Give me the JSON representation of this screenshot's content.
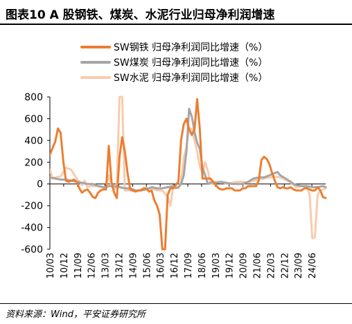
{
  "figure": {
    "title": "图表10   A 股钢铁、煤炭、水泥行业归母净利润增速",
    "source": "资料来源：Wind，平安证券研究所"
  },
  "chart_data": {
    "type": "line",
    "ylim": [
      -600,
      800
    ],
    "yticks": [
      -600,
      -400,
      -200,
      0,
      200,
      400,
      600,
      800
    ],
    "grid": false,
    "legend_position": "top",
    "x_tick_labels": [
      "10/03",
      "10/12",
      "11/09",
      "12/06",
      "13/03",
      "13/12",
      "14/09",
      "15/06",
      "16/03",
      "16/12",
      "17/09",
      "18/06",
      "19/03",
      "19/12",
      "20/09",
      "21/06",
      "22/03",
      "22/12",
      "23/09",
      "24/06"
    ],
    "highlight_band": {
      "from": "16/03",
      "to": "17/12",
      "color": "#fce4d6"
    },
    "series": [
      {
        "name": "SW钢铁 归母净利润同比增速（%）",
        "color": "#ed7d31",
        "stroke_width": 3,
        "values": [
          [
            0,
            270
          ],
          [
            2,
            390
          ],
          [
            3,
            510
          ],
          [
            4,
            470
          ],
          [
            5,
            210
          ],
          [
            6,
            30
          ],
          [
            7,
            20
          ],
          [
            8,
            30
          ],
          [
            9,
            40
          ],
          [
            10,
            20
          ],
          [
            11,
            -40
          ],
          [
            12,
            -80
          ],
          [
            13,
            -60
          ],
          [
            14,
            -50
          ],
          [
            15,
            -80
          ],
          [
            16,
            -120
          ],
          [
            17,
            -130
          ],
          [
            18,
            -80
          ],
          [
            19,
            -60
          ],
          [
            20,
            -50
          ],
          [
            21,
            -50
          ],
          [
            22,
            350
          ],
          [
            23,
            20
          ],
          [
            24,
            -80
          ],
          [
            25,
            -130
          ],
          [
            26,
            250
          ],
          [
            27,
            430
          ],
          [
            28,
            300
          ],
          [
            29,
            100
          ],
          [
            30,
            -50
          ],
          [
            31,
            -60
          ],
          [
            32,
            -70
          ],
          [
            33,
            -60
          ],
          [
            34,
            -60
          ],
          [
            35,
            -40
          ],
          [
            36,
            -40
          ],
          [
            37,
            -70
          ],
          [
            38,
            -60
          ],
          [
            39,
            -150
          ],
          [
            40,
            -200
          ],
          [
            41,
            -280
          ],
          [
            42,
            -600
          ],
          [
            43,
            -600
          ],
          [
            44,
            -100
          ],
          [
            45,
            -40
          ],
          [
            46,
            -40
          ],
          [
            47,
            -10
          ],
          [
            48,
            20
          ],
          [
            49,
            400
          ],
          [
            50,
            550
          ],
          [
            51,
            600
          ],
          [
            52,
            500
          ],
          [
            53,
            450
          ],
          [
            54,
            500
          ],
          [
            55,
            780
          ],
          [
            56,
            500
          ],
          [
            57,
            50
          ],
          [
            58,
            50
          ],
          [
            59,
            50
          ],
          [
            60,
            50
          ],
          [
            61,
            20
          ],
          [
            62,
            -10
          ],
          [
            63,
            -40
          ],
          [
            64,
            -50
          ],
          [
            65,
            -50
          ],
          [
            66,
            -40
          ],
          [
            67,
            -40
          ],
          [
            68,
            -40
          ],
          [
            69,
            -60
          ],
          [
            70,
            -60
          ],
          [
            71,
            -60
          ],
          [
            72,
            -40
          ],
          [
            73,
            -40
          ],
          [
            74,
            -20
          ],
          [
            75,
            -20
          ],
          [
            76,
            -20
          ],
          [
            77,
            -20
          ],
          [
            78,
            30
          ],
          [
            79,
            220
          ],
          [
            80,
            250
          ],
          [
            81,
            230
          ],
          [
            82,
            180
          ],
          [
            83,
            100
          ],
          [
            84,
            30
          ],
          [
            85,
            -30
          ],
          [
            86,
            -40
          ],
          [
            87,
            -30
          ],
          [
            88,
            -40
          ],
          [
            89,
            -40
          ],
          [
            90,
            -30
          ],
          [
            91,
            -50
          ],
          [
            92,
            -60
          ],
          [
            93,
            -60
          ],
          [
            94,
            -60
          ],
          [
            95,
            -40
          ],
          [
            96,
            -40
          ],
          [
            97,
            -50
          ],
          [
            98,
            -60
          ],
          [
            99,
            -60
          ],
          [
            100,
            -30
          ],
          [
            101,
            -60
          ],
          [
            102,
            -120
          ],
          [
            103,
            -130
          ]
        ]
      },
      {
        "name": "SW煤炭 归母净利润同比增速（%）",
        "color": "#a5a5a5",
        "stroke_width": 3,
        "values": [
          [
            0,
            60
          ],
          [
            2,
            50
          ],
          [
            4,
            40
          ],
          [
            6,
            40
          ],
          [
            8,
            30
          ],
          [
            10,
            20
          ],
          [
            12,
            10
          ],
          [
            14,
            0
          ],
          [
            16,
            0
          ],
          [
            18,
            -20
          ],
          [
            20,
            -30
          ],
          [
            22,
            -20
          ],
          [
            24,
            -20
          ],
          [
            26,
            -30
          ],
          [
            28,
            -40
          ],
          [
            30,
            -40
          ],
          [
            32,
            -60
          ],
          [
            34,
            -60
          ],
          [
            36,
            -50
          ],
          [
            38,
            -30
          ],
          [
            40,
            -40
          ],
          [
            42,
            -40
          ],
          [
            44,
            -30
          ],
          [
            46,
            -20
          ],
          [
            47,
            -40
          ],
          [
            48,
            -30
          ],
          [
            49,
            0
          ],
          [
            50,
            80
          ],
          [
            51,
            300
          ],
          [
            52,
            690
          ],
          [
            53,
            620
          ],
          [
            54,
            480
          ],
          [
            55,
            380
          ],
          [
            56,
            320
          ],
          [
            57,
            150
          ],
          [
            58,
            80
          ],
          [
            59,
            0
          ],
          [
            60,
            10
          ],
          [
            61,
            20
          ],
          [
            62,
            10
          ],
          [
            64,
            20
          ],
          [
            66,
            10
          ],
          [
            68,
            0
          ],
          [
            70,
            0
          ],
          [
            72,
            0
          ],
          [
            74,
            20
          ],
          [
            76,
            50
          ],
          [
            78,
            60
          ],
          [
            80,
            60
          ],
          [
            82,
            80
          ],
          [
            84,
            100
          ],
          [
            85,
            110
          ],
          [
            86,
            80
          ],
          [
            88,
            50
          ],
          [
            90,
            20
          ],
          [
            91,
            0
          ],
          [
            92,
            -10
          ],
          [
            94,
            -20
          ],
          [
            96,
            -20
          ],
          [
            98,
            -30
          ],
          [
            100,
            -30
          ],
          [
            102,
            -20
          ],
          [
            103,
            -30
          ]
        ]
      },
      {
        "name": "SW水泥 归母净利润同比增速（%）",
        "color": "#f8cbad",
        "stroke_width": 3,
        "values": [
          [
            0,
            130
          ],
          [
            1,
            50
          ],
          [
            2,
            60
          ],
          [
            4,
            70
          ],
          [
            6,
            150
          ],
          [
            8,
            130
          ],
          [
            10,
            50
          ],
          [
            12,
            -10
          ],
          [
            13,
            30
          ],
          [
            14,
            -30
          ],
          [
            15,
            -20
          ],
          [
            16,
            -20
          ],
          [
            17,
            -20
          ],
          [
            18,
            -20
          ],
          [
            19,
            -20
          ],
          [
            20,
            -40
          ],
          [
            21,
            -30
          ],
          [
            22,
            80
          ],
          [
            23,
            -20
          ],
          [
            24,
            -60
          ],
          [
            25,
            -10
          ],
          [
            26,
            900
          ],
          [
            27,
            900
          ],
          [
            28,
            -60
          ],
          [
            30,
            -60
          ],
          [
            32,
            -70
          ],
          [
            34,
            -50
          ],
          [
            36,
            -40
          ],
          [
            38,
            -40
          ],
          [
            40,
            -60
          ],
          [
            42,
            -60
          ],
          [
            44,
            -120
          ],
          [
            45,
            -200
          ],
          [
            46,
            -40
          ],
          [
            47,
            -20
          ],
          [
            48,
            -40
          ],
          [
            49,
            20
          ],
          [
            50,
            240
          ],
          [
            51,
            340
          ],
          [
            52,
            520
          ],
          [
            53,
            500
          ],
          [
            54,
            400
          ],
          [
            55,
            300
          ],
          [
            56,
            160
          ],
          [
            57,
            100
          ],
          [
            58,
            200
          ],
          [
            59,
            120
          ],
          [
            60,
            0
          ],
          [
            61,
            10
          ],
          [
            62,
            20
          ],
          [
            64,
            20
          ],
          [
            66,
            0
          ],
          [
            68,
            10
          ],
          [
            70,
            20
          ],
          [
            72,
            20
          ],
          [
            74,
            10
          ],
          [
            76,
            30
          ],
          [
            78,
            40
          ],
          [
            80,
            50
          ],
          [
            82,
            60
          ],
          [
            84,
            70
          ],
          [
            86,
            60
          ],
          [
            88,
            40
          ],
          [
            90,
            10
          ],
          [
            92,
            -30
          ],
          [
            94,
            -20
          ],
          [
            96,
            -20
          ],
          [
            97,
            -100
          ],
          [
            98,
            -500
          ],
          [
            99,
            -490
          ],
          [
            100,
            -100
          ],
          [
            101,
            -60
          ],
          [
            102,
            -50
          ],
          [
            103,
            -40
          ]
        ]
      }
    ]
  }
}
